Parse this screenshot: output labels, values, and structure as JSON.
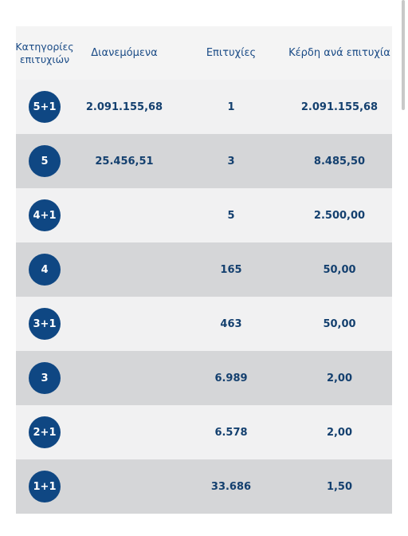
{
  "header": {
    "category": "Κατηγορίες επιτυχιών",
    "distributed": "Διανεμόμενα",
    "winners": "Επιτυχίες",
    "prize_per_win": "Κέρδη ανά επιτυχία"
  },
  "rows": [
    {
      "category": "5+1",
      "distributed": "2.091.155,68",
      "winners": "1",
      "prize": "2.091.155,68"
    },
    {
      "category": "5",
      "distributed": "25.456,51",
      "winners": "3",
      "prize": "8.485,50"
    },
    {
      "category": "4+1",
      "distributed": "",
      "winners": "5",
      "prize": "2.500,00"
    },
    {
      "category": "4",
      "distributed": "",
      "winners": "165",
      "prize": "50,00"
    },
    {
      "category": "3+1",
      "distributed": "",
      "winners": "463",
      "prize": "50,00"
    },
    {
      "category": "3",
      "distributed": "",
      "winners": "6.989",
      "prize": "2,00"
    },
    {
      "category": "2+1",
      "distributed": "",
      "winners": "6.578",
      "prize": "2,00"
    },
    {
      "category": "1+1",
      "distributed": "",
      "winners": "33.686",
      "prize": "1,50"
    }
  ]
}
